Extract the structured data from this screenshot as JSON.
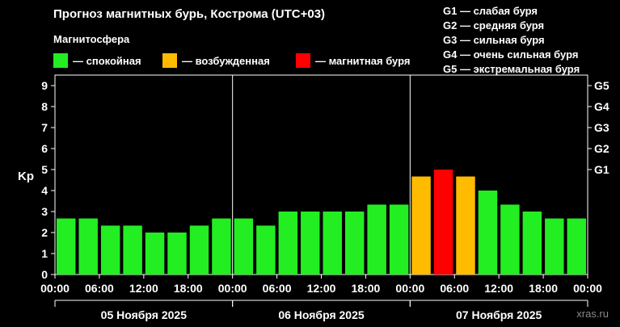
{
  "title": "Прогноз магнитных бурь, Кострома (UTC+03)",
  "magnetosphere_label": "Магнитосфера",
  "legend": [
    {
      "label": "— спокойная",
      "color": "#22ee22"
    },
    {
      "label": "— возбужденная",
      "color": "#ffbb00"
    },
    {
      "label": "— магнитная буря",
      "color": "#ff0000"
    }
  ],
  "g_legend": [
    "G1 — слабая буря",
    "G2 — средняя буря",
    "G3 — сильная буря",
    "G4 — очень сильная буря",
    "G5 — экстремальная буря"
  ],
  "watermark": "xras.ru",
  "chart_data": {
    "type": "bar",
    "ylabel": "Kp",
    "ylim": [
      0,
      9.5
    ],
    "y_ticks": [
      "0",
      "1",
      "2",
      "3",
      "4",
      "5",
      "6",
      "7",
      "8",
      "9"
    ],
    "g_ticks": [
      {
        "value": 5,
        "label": "G1"
      },
      {
        "value": 6,
        "label": "G2"
      },
      {
        "value": 7,
        "label": "G3"
      },
      {
        "value": 8,
        "label": "G4"
      },
      {
        "value": 9,
        "label": "G5"
      }
    ],
    "x_ticks": [
      "00:00",
      "06:00",
      "12:00",
      "18:00",
      "00:00",
      "06:00",
      "12:00",
      "18:00",
      "00:00",
      "06:00",
      "12:00",
      "18:00",
      "00:00"
    ],
    "days": [
      "05 Ноября 2025",
      "06 Ноября 2025",
      "07 Ноября 2025"
    ],
    "values": [
      2.67,
      2.67,
      2.33,
      2.33,
      2.0,
      2.0,
      2.33,
      2.67,
      2.67,
      2.33,
      3.0,
      3.0,
      3.0,
      3.0,
      3.33,
      3.33,
      4.67,
      5.0,
      4.67,
      4.0,
      3.33,
      3.0,
      2.67,
      2.67
    ],
    "levels": [
      "quiet",
      "quiet",
      "quiet",
      "quiet",
      "quiet",
      "quiet",
      "quiet",
      "quiet",
      "quiet",
      "quiet",
      "quiet",
      "quiet",
      "quiet",
      "quiet",
      "quiet",
      "quiet",
      "active",
      "storm",
      "active",
      "quiet",
      "quiet",
      "quiet",
      "quiet",
      "quiet"
    ],
    "level_colors": {
      "quiet": "#22ee22",
      "active": "#ffbb00",
      "storm": "#ff0000"
    },
    "grid": false
  }
}
